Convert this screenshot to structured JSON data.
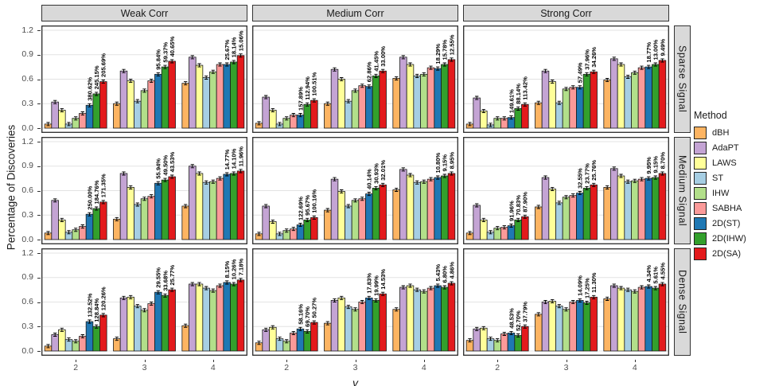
{
  "axes": {
    "x_label": "γ",
    "y_label": "Percentage of Discoveries",
    "y_ticks": [
      "0.0",
      "0.3",
      "0.6",
      "0.9",
      "1.2"
    ],
    "x_ticks": [
      "2",
      "3",
      "4"
    ]
  },
  "legend": {
    "title": "Method",
    "items": [
      {
        "label": "dBH",
        "color": "#FDB462"
      },
      {
        "label": "AdaPT",
        "color": "#C4A4D4"
      },
      {
        "label": "LAWS",
        "color": "#FFFF99"
      },
      {
        "label": "ST",
        "color": "#A6CEE3"
      },
      {
        "label": "IHW",
        "color": "#B2DF8A"
      },
      {
        "label": "SABHA",
        "color": "#FB9A99"
      },
      {
        "label": "2D(ST)",
        "color": "#1F78B4"
      },
      {
        "label": "2D(IHW)",
        "color": "#33A02C"
      },
      {
        "label": "2D(SA)",
        "color": "#E31A1C"
      }
    ]
  },
  "facets": {
    "columns": [
      "Weak Corr",
      "Medium Corr",
      "Strong Corr"
    ],
    "rows": [
      "Sparse Signal",
      "Medium Signal",
      "Dense Signal"
    ]
  },
  "chart_data": {
    "type": "bar",
    "faceted": true,
    "categories": [
      "2",
      "3",
      "4"
    ],
    "methods": [
      "dBH",
      "AdaPT",
      "LAWS",
      "ST",
      "IHW",
      "SABHA",
      "2D(ST)",
      "2D(IHW)",
      "2D(SA)"
    ],
    "xlabel": "γ",
    "ylabel": "Percentage of Discoveries",
    "ylim": [
      0,
      1.26
    ],
    "y_tick_values": [
      0.0,
      0.3,
      0.6,
      0.9,
      1.2
    ],
    "grid": "major-horizontal",
    "legend_position": "right",
    "error_bar_halfwidth": 0.02,
    "annotated_methods": [
      "2D(ST)",
      "2D(IHW)",
      "2D(SA)"
    ],
    "panels": [
      {
        "col": "Weak Corr",
        "row": "Sparse Signal",
        "groups": [
          {
            "gamma": "2",
            "values": [
              0.05,
              0.32,
              0.22,
              0.05,
              0.12,
              0.18,
              0.28,
              0.42,
              0.57
            ],
            "annotations": [
              "380.62%",
              "245.15%",
              "205.69%"
            ]
          },
          {
            "gamma": "3",
            "values": [
              0.3,
              0.7,
              0.58,
              0.33,
              0.46,
              0.58,
              0.66,
              0.75,
              0.82
            ],
            "annotations": [
              "95.84%",
              "59.37%",
              "40.65%"
            ]
          },
          {
            "gamma": "4",
            "values": [
              0.55,
              0.87,
              0.77,
              0.62,
              0.69,
              0.78,
              0.78,
              0.81,
              0.89
            ],
            "annotations": [
              "25.67%",
              "18.14%",
              "15.06%"
            ]
          }
        ]
      },
      {
        "col": "Medium Corr",
        "row": "Sparse Signal",
        "groups": [
          {
            "gamma": "2",
            "values": [
              0.06,
              0.38,
              0.22,
              0.05,
              0.12,
              0.16,
              0.16,
              0.29,
              0.34
            ],
            "annotations": [
              "157.89%",
              "112.94%",
              "100.51%"
            ]
          },
          {
            "gamma": "3",
            "values": [
              0.3,
              0.72,
              0.6,
              0.33,
              0.46,
              0.52,
              0.51,
              0.64,
              0.7
            ],
            "annotations": [
              "62.86%",
              "41.45%",
              "33.00%"
            ]
          },
          {
            "gamma": "4",
            "values": [
              0.61,
              0.87,
              0.78,
              0.64,
              0.66,
              0.74,
              0.73,
              0.78,
              0.84
            ],
            "annotations": [
              "18.29%",
              "15.78%",
              "12.55%"
            ]
          }
        ]
      },
      {
        "col": "Strong Corr",
        "row": "Sparse Signal",
        "groups": [
          {
            "gamma": "2",
            "values": [
              0.05,
              0.37,
              0.21,
              0.04,
              0.12,
              0.12,
              0.13,
              0.24,
              0.29
            ],
            "annotations": [
              "149.61%",
              "88.14%",
              "113.42%"
            ]
          },
          {
            "gamma": "3",
            "values": [
              0.31,
              0.7,
              0.57,
              0.31,
              0.48,
              0.5,
              0.5,
              0.66,
              0.69
            ],
            "annotations": [
              "57.49%",
              "37.96%",
              "34.26%"
            ]
          },
          {
            "gamma": "4",
            "values": [
              0.59,
              0.85,
              0.78,
              0.63,
              0.68,
              0.74,
              0.75,
              0.78,
              0.83
            ],
            "annotations": [
              "18.77%",
              "13.00%",
              "9.49%"
            ]
          }
        ]
      },
      {
        "col": "Weak Corr",
        "row": "Medium Signal",
        "groups": [
          {
            "gamma": "2",
            "values": [
              0.08,
              0.48,
              0.24,
              0.09,
              0.12,
              0.16,
              0.31,
              0.38,
              0.46
            ],
            "annotations": [
              "250.00%",
              "184.76%",
              "171.35%"
            ]
          },
          {
            "gamma": "3",
            "values": [
              0.25,
              0.81,
              0.64,
              0.43,
              0.5,
              0.53,
              0.69,
              0.73,
              0.77
            ],
            "annotations": [
              "55.94%",
              "49.50%",
              "43.53%"
            ]
          },
          {
            "gamma": "4",
            "values": [
              0.41,
              0.9,
              0.81,
              0.7,
              0.71,
              0.75,
              0.8,
              0.81,
              0.84
            ],
            "annotations": [
              "14.77%",
              "14.10%",
              "11.96%"
            ]
          }
        ]
      },
      {
        "col": "Medium Corr",
        "row": "Medium Signal",
        "groups": [
          {
            "gamma": "2",
            "values": [
              0.07,
              0.41,
              0.22,
              0.07,
              0.11,
              0.13,
              0.18,
              0.24,
              0.27
            ],
            "annotations": [
              "122.69%",
              "95.67%",
              "100.16%"
            ]
          },
          {
            "gamma": "3",
            "values": [
              0.36,
              0.74,
              0.59,
              0.41,
              0.48,
              0.5,
              0.56,
              0.63,
              0.67
            ],
            "annotations": [
              "40.14%",
              "30.93%",
              "32.01%"
            ]
          },
          {
            "gamma": "4",
            "values": [
              0.61,
              0.86,
              0.79,
              0.7,
              0.71,
              0.74,
              0.76,
              0.78,
              0.81
            ],
            "annotations": [
              "10.80%",
              "9.15%",
              "8.95%"
            ]
          }
        ]
      },
      {
        "col": "Strong Corr",
        "row": "Medium Signal",
        "groups": [
          {
            "gamma": "2",
            "values": [
              0.08,
              0.42,
              0.24,
              0.09,
              0.14,
              0.15,
              0.17,
              0.24,
              0.28
            ],
            "annotations": [
              "91.96%",
              "70.83%",
              "87.90%"
            ]
          },
          {
            "gamma": "3",
            "values": [
              0.4,
              0.76,
              0.62,
              0.45,
              0.52,
              0.54,
              0.57,
              0.63,
              0.67
            ],
            "annotations": [
              "32.55%",
              "23.77%",
              "25.76%"
            ]
          },
          {
            "gamma": "4",
            "values": [
              0.64,
              0.87,
              0.78,
              0.71,
              0.72,
              0.74,
              0.75,
              0.76,
              0.81
            ],
            "annotations": [
              "9.95%",
              "9.15%",
              "8.70%"
            ]
          }
        ]
      },
      {
        "col": "Weak Corr",
        "row": "Dense Signal",
        "groups": [
          {
            "gamma": "2",
            "values": [
              0.06,
              0.2,
              0.26,
              0.14,
              0.12,
              0.18,
              0.36,
              0.3,
              0.44
            ],
            "annotations": [
              "132.52%",
              "128.84%",
              "120.26%"
            ]
          },
          {
            "gamma": "3",
            "values": [
              0.15,
              0.65,
              0.66,
              0.55,
              0.5,
              0.58,
              0.72,
              0.68,
              0.75
            ],
            "annotations": [
              "29.55%",
              "33.68%",
              "25.77%"
            ]
          },
          {
            "gamma": "4",
            "values": [
              0.31,
              0.82,
              0.82,
              0.77,
              0.74,
              0.8,
              0.84,
              0.82,
              0.87
            ],
            "annotations": [
              "8.15%",
              "10.26%",
              "7.18%"
            ]
          }
        ]
      },
      {
        "col": "Medium Corr",
        "row": "Dense Signal",
        "groups": [
          {
            "gamma": "2",
            "values": [
              0.1,
              0.26,
              0.29,
              0.15,
              0.12,
              0.22,
              0.27,
              0.24,
              0.35
            ],
            "annotations": [
              "58.16%",
              "69.70%",
              "50.27%"
            ]
          },
          {
            "gamma": "3",
            "values": [
              0.34,
              0.62,
              0.65,
              0.54,
              0.51,
              0.6,
              0.65,
              0.62,
              0.7
            ],
            "annotations": [
              "17.83%",
              "19.99%",
              "14.53%"
            ]
          },
          {
            "gamma": "4",
            "values": [
              0.51,
              0.78,
              0.8,
              0.75,
              0.73,
              0.77,
              0.8,
              0.78,
              0.83
            ],
            "annotations": [
              "5.43%",
              "6.80%",
              "4.86%"
            ]
          }
        ]
      },
      {
        "col": "Strong Corr",
        "row": "Dense Signal",
        "groups": [
          {
            "gamma": "2",
            "values": [
              0.13,
              0.27,
              0.28,
              0.15,
              0.13,
              0.21,
              0.22,
              0.19,
              0.3
            ],
            "annotations": [
              "48.53%",
              "52.70%",
              "37.79%"
            ]
          },
          {
            "gamma": "3",
            "values": [
              0.45,
              0.6,
              0.61,
              0.55,
              0.51,
              0.6,
              0.62,
              0.59,
              0.66
            ],
            "annotations": [
              "14.09%",
              "17.25%",
              "11.30%"
            ]
          },
          {
            "gamma": "4",
            "values": [
              0.64,
              0.8,
              0.77,
              0.75,
              0.73,
              0.78,
              0.79,
              0.77,
              0.82
            ],
            "annotations": [
              "4.34%",
              "5.61%",
              "4.55%"
            ]
          }
        ]
      }
    ]
  }
}
